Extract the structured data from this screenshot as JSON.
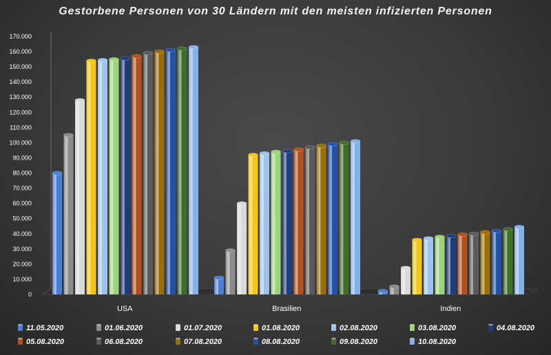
{
  "chart_data": {
    "type": "bar",
    "title": "Gestorbene Personen von 30 Ländern mit den meisten infizierten Personen",
    "categories": [
      "USA",
      "Brasilien",
      "Indien"
    ],
    "ylim": [
      0,
      170000
    ],
    "yticks": [
      "0",
      "10.000",
      "20.000",
      "30.000",
      "40.000",
      "50.000",
      "60.000",
      "70.000",
      "80.000",
      "90.000",
      "100.000",
      "110.000",
      "120.000",
      "130.000",
      "140.000",
      "150.000",
      "160.000",
      "170.000"
    ],
    "grid": false,
    "legend_position": "bottom",
    "series": [
      {
        "name": "11.05.2020",
        "color": "#4a7fd6",
        "values": [
          80000,
          11000,
          2200
        ]
      },
      {
        "name": "01.06.2020",
        "color": "#8c8c8c",
        "values": [
          105000,
          29000,
          5200
        ]
      },
      {
        "name": "01.07.2020",
        "color": "#d9d9d9",
        "values": [
          128000,
          60000,
          17500
        ]
      },
      {
        "name": "01.08.2020",
        "color": "#f5c518",
        "values": [
          154000,
          92000,
          36000
        ]
      },
      {
        "name": "02.08.2020",
        "color": "#9cc3ec",
        "values": [
          154500,
          93000,
          37000
        ]
      },
      {
        "name": "03.08.2020",
        "color": "#9ed37e",
        "values": [
          155000,
          94000,
          38000
        ]
      },
      {
        "name": "04.08.2020",
        "color": "#1f3d7a",
        "values": [
          155500,
          94500,
          38500
        ]
      },
      {
        "name": "05.08.2020",
        "color": "#b3501e",
        "values": [
          157000,
          95500,
          39500
        ]
      },
      {
        "name": "06.08.2020",
        "color": "#5a5a5a",
        "values": [
          159000,
          97000,
          40000
        ]
      },
      {
        "name": "07.08.2020",
        "color": "#9a6f0a",
        "values": [
          160000,
          98000,
          41000
        ]
      },
      {
        "name": "08.08.2020",
        "color": "#2451a8",
        "values": [
          161000,
          99000,
          42000
        ]
      },
      {
        "name": "09.08.2020",
        "color": "#3f6e2a",
        "values": [
          162000,
          100000,
          43000
        ]
      },
      {
        "name": "10.08.2020",
        "color": "#86b0ea",
        "values": [
          163000,
          101000,
          44500
        ]
      }
    ]
  }
}
